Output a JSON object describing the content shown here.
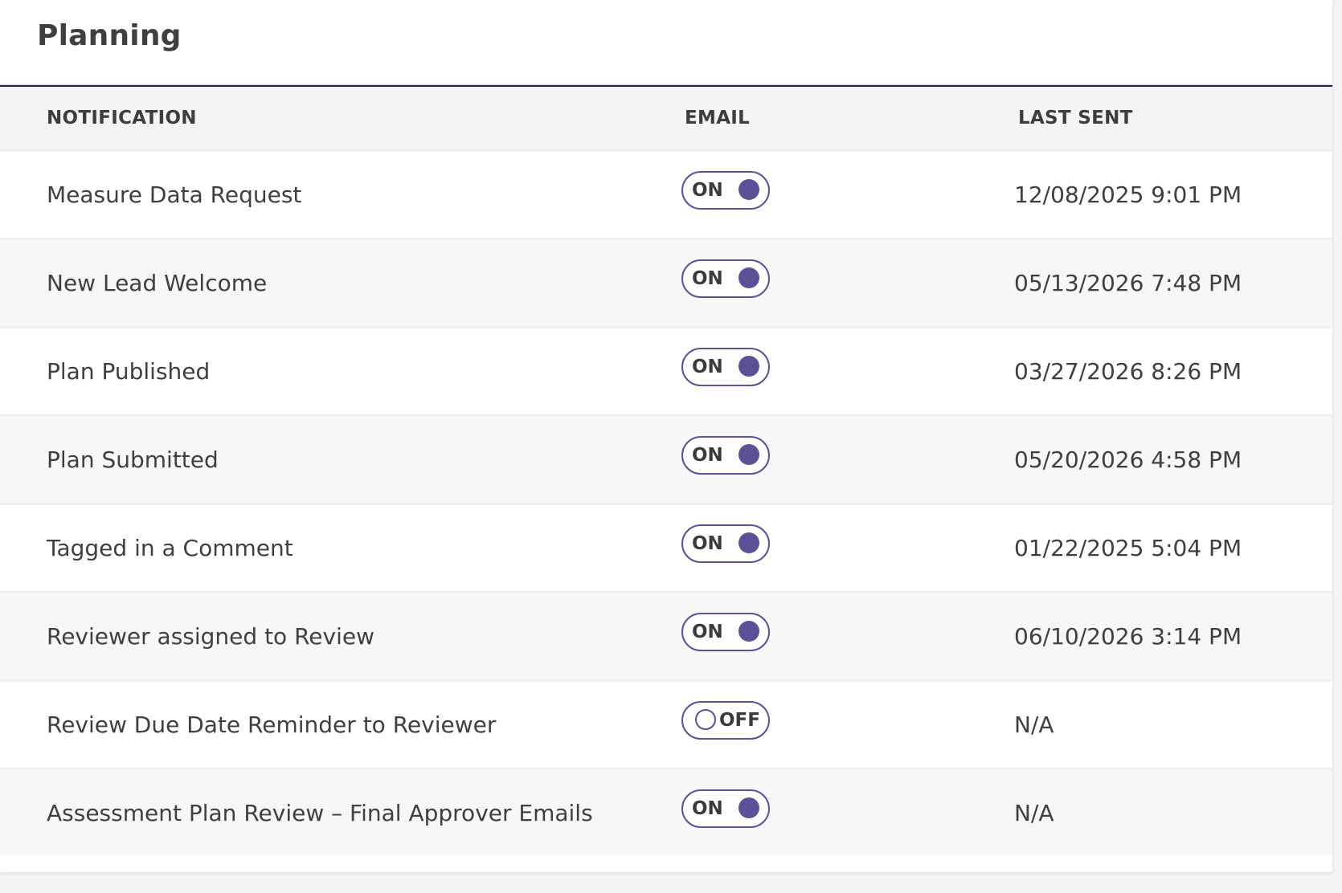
{
  "section": {
    "title": "Planning"
  },
  "table": {
    "headers": {
      "notification": "NOTIFICATION",
      "email": "EMAIL",
      "last_sent": "LAST SENT"
    },
    "rows": [
      {
        "notification": "Measure Data Request",
        "email": "ON",
        "last_sent": "12/08/2025 9:01 PM"
      },
      {
        "notification": "New Lead Welcome",
        "email": "ON",
        "last_sent": "05/13/2026 7:48 PM"
      },
      {
        "notification": "Plan Published",
        "email": "ON",
        "last_sent": "03/27/2026 8:26 PM"
      },
      {
        "notification": "Plan Submitted",
        "email": "ON",
        "last_sent": "05/20/2026 4:58 PM"
      },
      {
        "notification": "Tagged in a Comment",
        "email": "ON",
        "last_sent": "01/22/2025 5:04 PM"
      },
      {
        "notification": "Reviewer assigned to Review",
        "email": "ON",
        "last_sent": "06/10/2026 3:14 PM"
      },
      {
        "notification": "Review Due Date Reminder to Reviewer",
        "email": "OFF",
        "last_sent": "N/A"
      },
      {
        "notification": "Assessment Plan Review – Final Approver Emails",
        "email": "ON",
        "last_sent": "N/A"
      }
    ]
  },
  "colors": {
    "accent": "#5b5196",
    "header_rule": "#1f1c45",
    "row_alt": "#f7f7f8",
    "header_bg": "#f4f4f6"
  }
}
